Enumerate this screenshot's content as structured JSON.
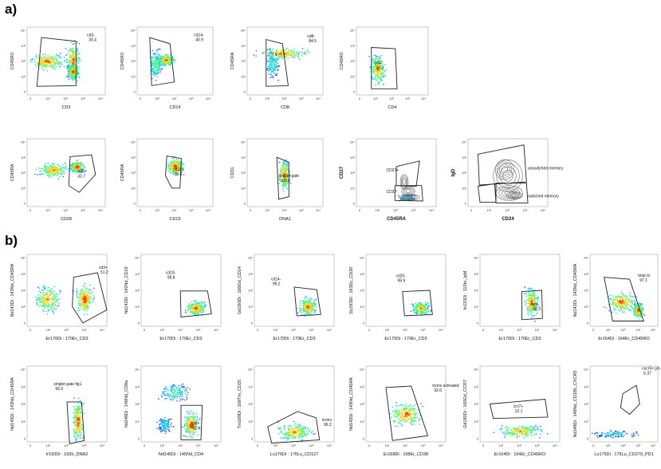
{
  "figure": {
    "label_a": "a)",
    "label_b": "b)"
  },
  "chart_data": [
    {
      "type": "scatter",
      "panel": "a1",
      "xlabel": "CD3",
      "ylabel": "CD45RO",
      "xticks": [
        "0",
        "10¹",
        "10²",
        "10³",
        "10⁴"
      ],
      "yticks": [
        "10⁴",
        "10³",
        "10²",
        "10¹",
        "0"
      ],
      "gates": [
        {
          "name": "cd3-",
          "value": "30.4"
        }
      ]
    },
    {
      "type": "scatter",
      "panel": "a2",
      "xlabel": "CD14",
      "ylabel": "CD45RO",
      "xticks": [
        "0",
        "10¹",
        "10²",
        "10³",
        "10⁴"
      ],
      "yticks": [
        "10⁴",
        "10³",
        "10²",
        "10¹",
        "0"
      ],
      "gates": [
        {
          "name": "cd14-",
          "value": "40.9"
        }
      ]
    },
    {
      "type": "scatter",
      "panel": "a3",
      "xlabel": "CD8",
      "ylabel": "CD45RA",
      "xticks": [
        "0",
        "10¹",
        "10²",
        "10³",
        "10⁴"
      ],
      "yticks": [
        "10⁴",
        "10³",
        "10²",
        "10¹",
        "0"
      ],
      "gates": [
        {
          "name": "cd8-",
          "value": "84.5"
        }
      ]
    },
    {
      "type": "scatter",
      "panel": "a4",
      "xlabel": "CD4",
      "ylabel": "CD45RO",
      "xticks": [
        "0",
        "10¹",
        "10²",
        "10³",
        "10⁴"
      ],
      "yticks": [
        "10⁴",
        "10³",
        "10²",
        "10¹",
        "0"
      ],
      "gates": [
        {
          "name": "cd4-",
          "value": "98.3"
        }
      ]
    },
    {
      "type": "scatter",
      "panel": "a5",
      "xlabel": "CD28",
      "ylabel": "CD45RA",
      "xticks": [
        "0",
        "10¹",
        "10²",
        "10³",
        "10⁴"
      ],
      "yticks": [
        "10⁴",
        "10³",
        "10²",
        "10¹",
        "0"
      ],
      "gates": [
        {
          "name": "cd28+",
          "value": "33.7"
        }
      ]
    },
    {
      "type": "scatter",
      "panel": "a6",
      "xlabel": "CD19",
      "ylabel": "CD45RA",
      "xticks": [
        "0",
        "10¹",
        "10²",
        "10³",
        "10⁴"
      ],
      "yticks": [
        "10⁴",
        "10³",
        "10²",
        "10¹",
        "0"
      ],
      "gates": [
        {
          "name": "cd19+",
          "value": "99.1"
        }
      ]
    },
    {
      "type": "scatter",
      "panel": "a7",
      "xlabel": "DNA1",
      "ylabel": "CD31",
      "xticks": [
        "0",
        "10¹",
        "10²",
        "10³",
        "10⁴"
      ],
      "yticks": [
        "10⁴",
        "10³",
        "10²",
        "10¹",
        "0"
      ],
      "gates": [
        {
          "name": "singlet gate",
          "value": "100.0"
        }
      ]
    },
    {
      "type": "scatter",
      "panel": "a8",
      "xlabel": "CD45RA",
      "ylabel": "CD27",
      "xticks": [
        "0",
        "10¹",
        "10²",
        "10³",
        "10⁴"
      ],
      "yticks": [
        "10⁴",
        "10³",
        "10²",
        "10¹",
        "0"
      ],
      "gates": [
        {
          "name": "CD27+",
          "value": ""
        },
        {
          "name": "CD27-",
          "value": ""
        }
      ]
    },
    {
      "type": "scatter",
      "panel": "a9",
      "xlabel": "CD24",
      "ylabel": "IgD",
      "xticks": [
        "0",
        "10¹",
        "10²",
        "10³",
        "10⁴"
      ],
      "yticks": [
        "10⁴",
        "10³",
        "10²",
        "10¹",
        "0"
      ],
      "gates": [
        {
          "name": "unswitched memory",
          "value": ""
        },
        {
          "name": "switched memory",
          "value": ""
        }
      ]
    },
    {
      "type": "scatter",
      "panel": "b1",
      "xlabel": "Er170Di : 170Er_CD3",
      "ylabel": "Nd143Di : 143Nd_CD45RA",
      "xticks": [
        "0",
        "10¹",
        "10²",
        "10³",
        "10⁴"
      ],
      "yticks": [
        "10⁴",
        "10³",
        "10²",
        "10¹",
        "0"
      ],
      "gates": [
        {
          "name": "cd3+",
          "value": "51.2"
        }
      ]
    },
    {
      "type": "scatter",
      "panel": "b2",
      "xlabel": "Er170Di : 170Er_CD3",
      "ylabel": "Nd142Di : 142Nd_CD19",
      "xticks": [
        "0",
        "10¹",
        "10²",
        "10³",
        "10⁴"
      ],
      "yticks": [
        "10⁴",
        "10³",
        "10²",
        "10¹",
        "0"
      ],
      "gates": [
        {
          "name": "cd19-",
          "value": "99.8"
        }
      ]
    },
    {
      "type": "scatter",
      "panel": "b3",
      "xlabel": "Er170Di : 170Er_CD3",
      "ylabel": "Gd160Di : 160Gd_CD14",
      "xticks": [
        "0",
        "10¹",
        "10²",
        "10³",
        "10⁴"
      ],
      "yticks": [
        "10⁴",
        "10³",
        "10²",
        "10¹",
        "0"
      ],
      "gates": [
        {
          "name": "cd14-",
          "value": "99.2"
        }
      ]
    },
    {
      "type": "scatter",
      "panel": "b4",
      "xlabel": "Er170Di : 170Er_CD3",
      "ylabel": "Dy163Di : 163Dy_CD20",
      "xticks": [
        "0",
        "10¹",
        "10²",
        "10³",
        "10⁴"
      ],
      "yticks": [
        "10⁴",
        "10³",
        "10²",
        "10¹",
        "0"
      ],
      "gates": [
        {
          "name": "cd20-",
          "value": "99.9"
        }
      ]
    },
    {
      "type": "scatter",
      "panel": "b5",
      "xlabel": "Er170Di : 170Er_CD3",
      "ylabel": "In115Di : 115In_IgM",
      "xticks": [
        "0",
        "10¹",
        "10²",
        "10³",
        "10⁴"
      ],
      "yticks": [
        "10⁴",
        "10³",
        "10²",
        "10¹",
        "0"
      ],
      "gates": [
        {
          "name": "igm-",
          "value": "98.3"
        }
      ]
    },
    {
      "type": "scatter",
      "panel": "b6",
      "xlabel": "Er164Di : 164Er_CD45RO",
      "ylabel": "Nd143Di : 143Nd_CD45RA",
      "xticks": [
        "0",
        "10¹",
        "10²",
        "10³",
        "10⁴"
      ],
      "yticks": [
        "10⁴",
        "10³",
        "10²",
        "10¹",
        "0"
      ],
      "gates": [
        {
          "name": "total m",
          "value": "97.1"
        }
      ]
    },
    {
      "type": "scatter",
      "panel": "b7",
      "xlabel": "Ir193Di : 193Ir_DNA2",
      "ylabel": "Nd143Di : 143Nd_CD45RA",
      "xticks": [
        "0",
        "10¹",
        "10²",
        "10³",
        "10⁴"
      ],
      "yticks": [
        "10⁴",
        "10³",
        "10²",
        "10¹",
        "0"
      ],
      "gates": [
        {
          "name": "singlet gate fig1",
          "value": "96.0"
        }
      ]
    },
    {
      "type": "scatter",
      "panel": "b8",
      "xlabel": "Nd145Di : 145Nd_CD4",
      "ylabel": "Nd146Di : 146Nd_CD8a",
      "xticks": [
        "0",
        "10¹",
        "10²",
        "10³",
        "10⁴"
      ],
      "yticks": [
        "10⁴",
        "10³",
        "10²",
        "10¹",
        "0"
      ],
      "gates": [
        {
          "name": "cd4+",
          "value": "81.4"
        }
      ]
    },
    {
      "type": "scatter",
      "panel": "b9",
      "xlabel": "Lu176Di : 176Lu_CD127",
      "ylabel": "Tm169Di : 169Tm_CD25",
      "xticks": [
        "0",
        "10¹",
        "10²",
        "10³",
        "10⁴"
      ],
      "yticks": [
        "10⁴",
        "10³",
        "10²",
        "10¹",
        "0"
      ],
      "gates": [
        {
          "name": "tconv",
          "value": "96.2"
        }
      ]
    },
    {
      "type": "scatter",
      "panel": "b10",
      "xlabel": "Er168Di : 168Er_CD38",
      "ylabel": "Nd143Di : 143Nd_CD45RA",
      "xticks": [
        "0",
        "10¹",
        "10²",
        "10³",
        "10⁴"
      ],
      "yticks": [
        "10⁴",
        "10³",
        "10²",
        "10¹",
        "0"
      ],
      "gates": [
        {
          "name": "tconv activated",
          "value": "92.6"
        }
      ]
    },
    {
      "type": "scatter",
      "panel": "b11",
      "xlabel": "Er164Di : 164Er_CD45RO",
      "ylabel": "Gd160Di : 160Gd_CCR7",
      "xticks": [
        "0",
        "10¹",
        "10²",
        "10³",
        "10⁴"
      ],
      "yticks": [
        "10⁴",
        "10³",
        "10²",
        "10¹",
        "0"
      ],
      "gates": [
        {
          "name": "ccr7+",
          "value": "12.1"
        }
      ]
    },
    {
      "type": "scatter",
      "panel": "b12",
      "xlabel": "Lu175Di : 175Lu_CD279_PD1",
      "ylabel": "Nd148Di : 148Nd_CD185_CXCR5",
      "xticks": [
        "0",
        "10¹",
        "10²",
        "10³",
        "10⁴"
      ],
      "yticks": [
        "10⁴",
        "10³",
        "10²",
        "10¹",
        "0"
      ],
      "gates": [
        {
          "name": "cxcr5+ pd-1+",
          "value": "6.37"
        }
      ]
    }
  ]
}
